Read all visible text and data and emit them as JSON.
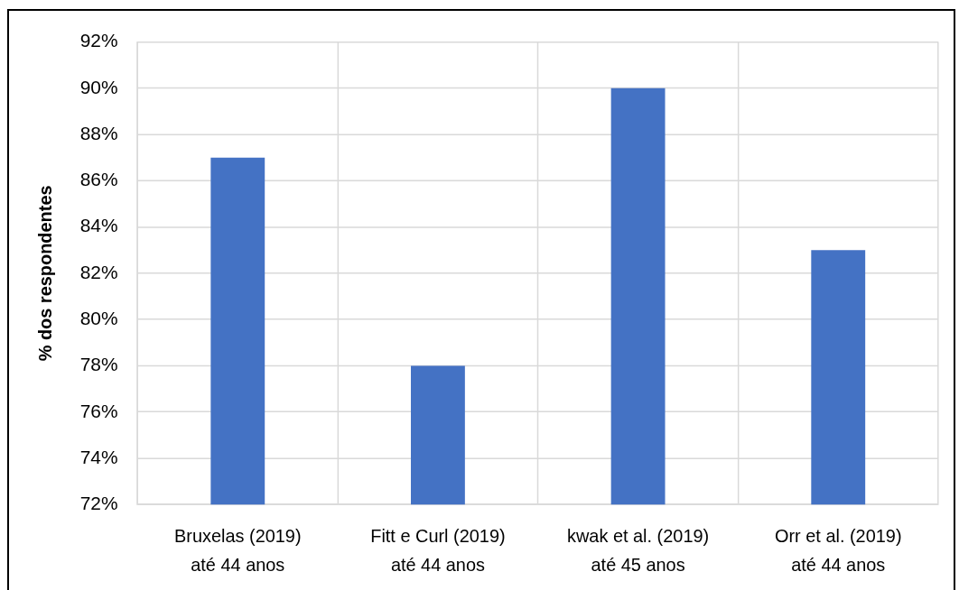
{
  "chart_data": {
    "type": "bar",
    "ylabel": "% dos respondentes",
    "categories": [
      "Bruxelas (2019)\naté 44 anos",
      "Fitt e Curl (2019)\naté 44 anos",
      "kwak et al. (2019)\naté 45 anos",
      "Orr et al. (2019)\naté 44 anos"
    ],
    "values": [
      87,
      78,
      90,
      83
    ],
    "color": "#4472c4",
    "ylim": [
      72,
      92
    ],
    "yticks": [
      {
        "value": 72,
        "label": "72%"
      },
      {
        "value": 74,
        "label": "74%"
      },
      {
        "value": 76,
        "label": "76%"
      },
      {
        "value": 78,
        "label": "78%"
      },
      {
        "value": 80,
        "label": "80%"
      },
      {
        "value": 82,
        "label": "82%"
      },
      {
        "value": 84,
        "label": "84%"
      },
      {
        "value": 86,
        "label": "86%"
      },
      {
        "value": 88,
        "label": "88%"
      },
      {
        "value": 90,
        "label": "90%"
      },
      {
        "value": 92,
        "label": "92%"
      }
    ],
    "grid": true
  }
}
